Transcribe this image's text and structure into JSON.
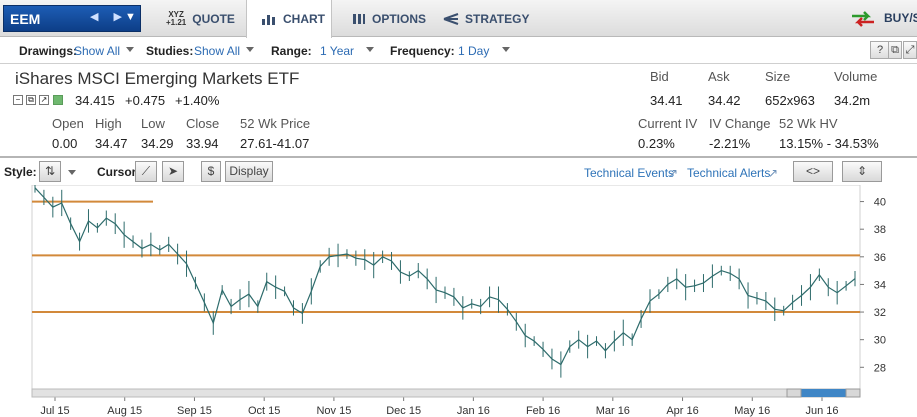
{
  "symbol": "EEM",
  "nav": {
    "quote_icon_top": "XYZ",
    "quote_icon_bottom": "+1.21",
    "tabs": [
      {
        "label": "QUOTE"
      },
      {
        "label": "CHART"
      },
      {
        "label": "OPTIONS"
      },
      {
        "label": "STRATEGY"
      }
    ],
    "buy_sell": "BUY/SE"
  },
  "toolbar": {
    "drawings_label": "Drawings:",
    "drawings_value": "Show All",
    "studies_label": "Studies:",
    "studies_value": "Show All",
    "range_label": "Range:",
    "range_value": "1 Year",
    "frequency_label": "Frequency:",
    "frequency_value": "1 Day"
  },
  "quote": {
    "name": "iShares MSCI Emerging Markets ETF",
    "last": "34.415",
    "change": "+0.475",
    "change_pct": "+1.40%",
    "open_label": "Open",
    "open": "0.00",
    "high_label": "High",
    "high": "34.47",
    "low_label": "Low",
    "low": "34.29",
    "close_label": "Close",
    "close": "33.94",
    "wk52_label": "52 Wk Price",
    "wk52": "27.61-41.07",
    "bid_label": "Bid",
    "bid": "34.41",
    "ask_label": "Ask",
    "ask": "34.42",
    "size_label": "Size",
    "size": "652x963",
    "volume_label": "Volume",
    "volume": "34.2m",
    "iv_label": "Current IV",
    "iv": "0.23%",
    "ivchg_label": "IV Change",
    "ivchg": "-2.21%",
    "hv_label": "52 Wk HV",
    "hv": "13.15% - 34.53%"
  },
  "chart_toolbar": {
    "style_label": "Style:",
    "cursor_label": "Cursor:",
    "display_label": "Display",
    "dollar": "$",
    "tech_events": "Technical Events",
    "tech_alerts": "Technical Alerts"
  },
  "colors": {
    "price": "#2d6b6b",
    "level_line": "#d2893a",
    "nav_blue": "#0d3e87"
  },
  "chart_data": {
    "type": "line",
    "title": "",
    "xlabel": "",
    "ylabel": "",
    "ylim": [
      26.5,
      41.2
    ],
    "yticks": [
      28,
      30,
      32,
      34,
      36,
      38,
      40
    ],
    "x_tick_labels": [
      "Jul 15",
      "Aug 15",
      "Sep 15",
      "Oct 15",
      "Nov 15",
      "Dec 15",
      "Jan 16",
      "Feb 16",
      "Mar 16",
      "Apr 16",
      "May 16",
      "Jun 16"
    ],
    "series": [
      {
        "values": [
          41.0,
          40.3,
          39.6,
          39.9,
          38.4,
          37.1,
          38.6,
          38.1,
          38.8,
          38.4,
          37.6,
          37.1,
          36.6,
          36.9,
          36.5,
          36.9,
          36.2,
          35.5,
          34.1,
          32.7,
          31.2,
          33.6,
          32.4,
          32.9,
          33.3,
          32.4,
          34.2,
          33.8,
          33.5,
          32.3,
          31.9,
          33.5,
          35.3,
          36.0,
          36.1,
          36.2,
          35.9,
          35.8,
          35.4,
          36.0,
          35.7,
          34.9,
          34.6,
          35.0,
          34.4,
          33.6,
          33.4,
          33.1,
          32.3,
          32.6,
          32.4,
          33.1,
          32.9,
          32.2,
          31.3,
          30.3,
          29.9,
          29.3,
          28.6,
          28.2,
          29.5,
          30.0,
          29.5,
          29.9,
          29.2,
          29.9,
          30.5,
          30.0,
          31.5,
          32.8,
          33.3,
          34.0,
          34.4,
          33.8,
          33.9,
          34.1,
          34.6,
          35.0,
          34.8,
          34.4,
          33.2,
          33.0,
          32.8,
          32.2,
          32.1,
          32.7,
          33.2,
          33.8,
          34.7,
          33.8,
          33.4,
          33.9,
          34.42
        ]
      }
    ],
    "horizontal_lines": [
      {
        "y": 40.0,
        "x_start_label": "Jul 15",
        "partial": true
      },
      {
        "y": 36.1
      },
      {
        "y": 32.0
      }
    ],
    "grid": false,
    "legend": "none"
  }
}
